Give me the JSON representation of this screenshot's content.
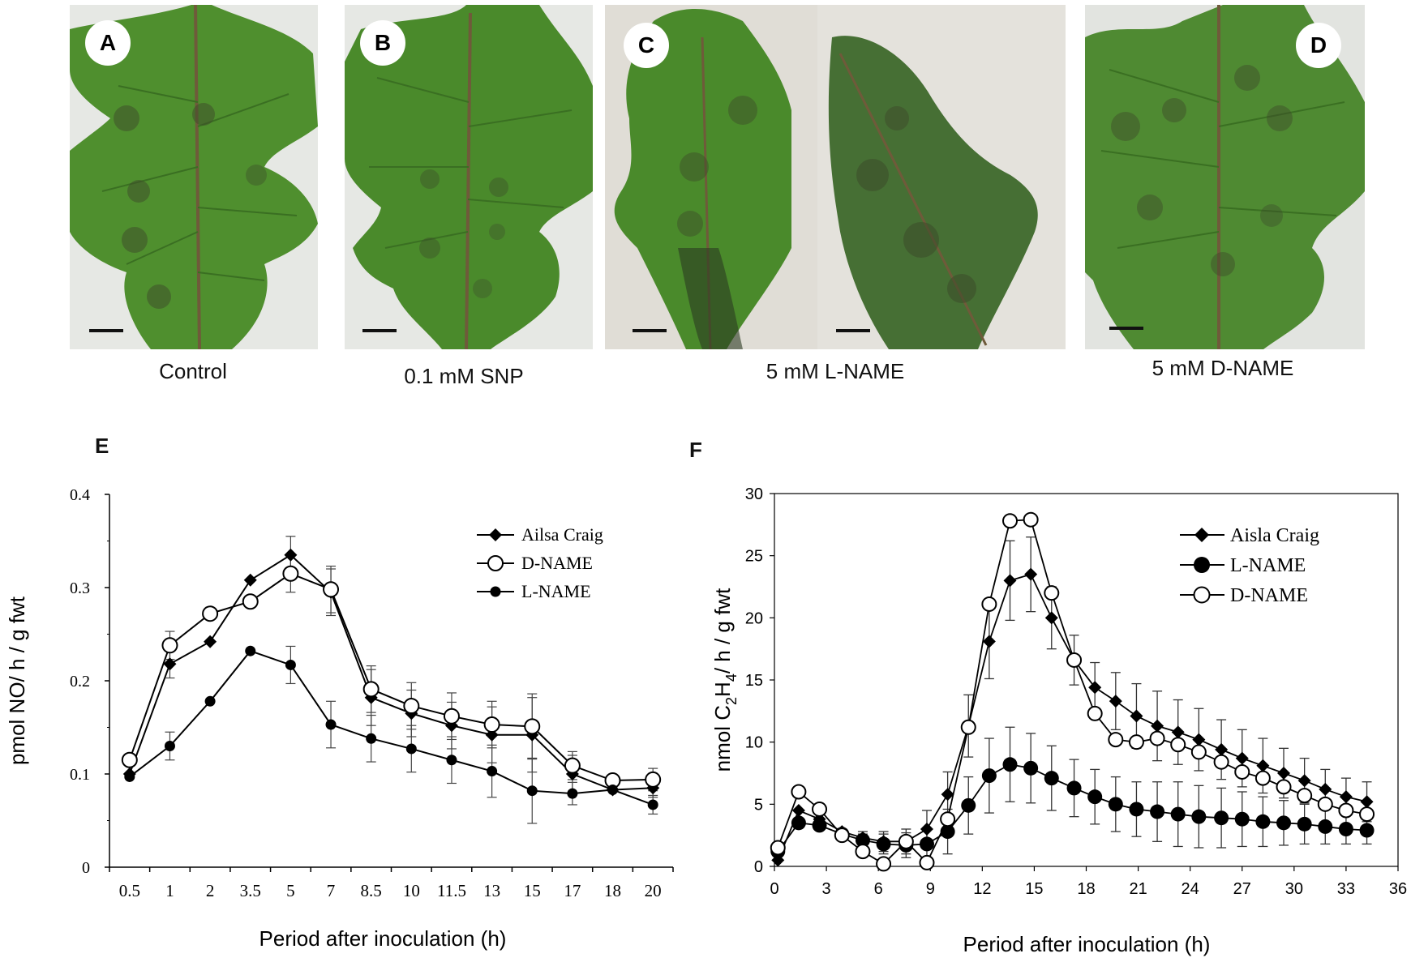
{
  "photos": [
    {
      "id": "A",
      "caption": "Control"
    },
    {
      "id": "B",
      "caption": "0.1 mM SNP"
    },
    {
      "id": "C",
      "caption": "5 mM L-NAME"
    },
    {
      "id": "D",
      "caption": "5 mM D-NAME"
    }
  ],
  "colors": {
    "leaf": "#4f8f2e",
    "leaf_dark": "#3a6f22",
    "vein": "#6f5a3a",
    "lesion": "#3d4a2a",
    "marker": "#000000"
  },
  "charts": {
    "E": {
      "label": "E",
      "chart_data": {
        "type": "line",
        "xlabel": "Period after inoculation (h)",
        "ylabel": "pmol NO/ h / g fwt",
        "ylim": [
          0,
          0.4
        ],
        "yticks": [
          "0",
          "0.1",
          "0.2",
          "0.3",
          "0.4"
        ],
        "categories": [
          "0.5",
          "1",
          "2",
          "3.5",
          "5",
          "7",
          "8.5",
          "10",
          "11.5",
          "13",
          "15",
          "17",
          "18",
          "20"
        ],
        "legend_position": "top-right",
        "series": [
          {
            "name": "Ailsa Craig",
            "marker": "diamond",
            "values": [
              0.1,
              0.218,
              0.242,
              0.308,
              0.335,
              0.295,
              0.182,
              0.165,
              0.152,
              0.142,
              0.142,
              0.1,
              0.083,
              0.085
            ],
            "errors": [
              0,
              0.015,
              0,
              0,
              0.02,
              0.025,
              0.03,
              0.025,
              0.025,
              0.03,
              0.04,
              0.02,
              0,
              0.01
            ]
          },
          {
            "name": "D-NAME",
            "marker": "open-circle",
            "values": [
              0.115,
              0.238,
              0.272,
              0.285,
              0.315,
              0.298,
              0.191,
              0.173,
              0.162,
              0.153,
              0.151,
              0.109,
              0.093,
              0.094
            ],
            "errors": [
              0,
              0.015,
              0,
              0,
              0.02,
              0.025,
              0.025,
              0.025,
              0.025,
              0.025,
              0.035,
              0.015,
              0,
              0.012
            ]
          },
          {
            "name": "L-NAME",
            "marker": "filled-circle",
            "values": [
              0.097,
              0.13,
              0.178,
              0.232,
              0.217,
              0.153,
              0.138,
              0.127,
              0.115,
              0.103,
              0.082,
              0.079,
              0.083,
              0.067
            ],
            "errors": [
              0,
              0.015,
              0,
              0,
              0.02,
              0.025,
              0.025,
              0.025,
              0.025,
              0.028,
              0.035,
              0.012,
              0,
              0.01
            ]
          }
        ]
      }
    },
    "F": {
      "label": "F",
      "chart_data": {
        "type": "line",
        "xlabel": "Period after inoculation (h)",
        "ylabel_parts": [
          "nmol C",
          "2",
          "H",
          "4",
          "/ h / g fwt"
        ],
        "xlim": [
          0,
          36
        ],
        "ylim": [
          0,
          30
        ],
        "xticks": [
          0,
          3,
          6,
          9,
          12,
          15,
          18,
          21,
          24,
          27,
          30,
          33,
          36
        ],
        "yticks": [
          0,
          5,
          10,
          15,
          20,
          25,
          30
        ],
        "legend_position": "top-right",
        "x": [
          0.2,
          1.4,
          2.6,
          3.9,
          5.1,
          6.3,
          7.6,
          8.8,
          10.0,
          11.2,
          12.4,
          13.6,
          14.8,
          16.0,
          17.3,
          18.5,
          19.7,
          20.9,
          22.1,
          23.3,
          24.5,
          25.8,
          27.0,
          28.2,
          29.4,
          30.6,
          31.8,
          33.0,
          34.2
        ],
        "series": [
          {
            "name": "Aisla Craig",
            "marker": "diamond",
            "values": [
              0.5,
              4.5,
              3.8,
              2.8,
              2.3,
              2.0,
              2.0,
              3.0,
              5.8,
              11.3,
              18.1,
              23.0,
              23.5,
              20.0,
              16.6,
              14.4,
              13.3,
              12.1,
              11.3,
              10.8,
              10.2,
              9.4,
              8.7,
              8.1,
              7.5,
              6.9,
              6.2,
              5.6,
              5.2
            ],
            "errors": [
              0,
              0,
              0,
              0,
              0.5,
              0.8,
              1.0,
              1.5,
              1.8,
              2.5,
              3.0,
              3.2,
              3.0,
              2.5,
              2.0,
              2.0,
              2.3,
              2.6,
              2.8,
              2.6,
              2.5,
              2.4,
              2.3,
              2.2,
              2.0,
              1.8,
              1.6,
              1.5,
              1.6
            ]
          },
          {
            "name": "L-NAME",
            "marker": "filled-circle",
            "values": [
              1.2,
              3.5,
              3.3,
              2.6,
              2.1,
              1.8,
              1.7,
              1.8,
              2.8,
              4.9,
              7.3,
              8.2,
              7.9,
              7.1,
              6.3,
              5.6,
              5.0,
              4.6,
              4.4,
              4.2,
              4.0,
              3.9,
              3.8,
              3.6,
              3.5,
              3.4,
              3.2,
              3.0,
              2.9
            ],
            "errors": [
              0,
              0,
              0,
              0,
              0.5,
              0.8,
              1.0,
              1.3,
              1.8,
              2.3,
              3.0,
              3.0,
              2.8,
              2.6,
              2.3,
              2.2,
              2.2,
              2.2,
              2.4,
              2.6,
              2.5,
              2.4,
              2.2,
              2.0,
              1.8,
              1.6,
              1.4,
              1.2,
              1.1
            ]
          },
          {
            "name": "D-NAME",
            "marker": "open-circle",
            "values": [
              1.5,
              6.0,
              4.6,
              2.5,
              1.2,
              0.2,
              2.0,
              0.3,
              3.8,
              11.2,
              21.1,
              27.8,
              27.9,
              22.0,
              16.6,
              12.3,
              10.2,
              10.0,
              10.3,
              9.8,
              9.2,
              8.4,
              7.6,
              7.1,
              6.4,
              5.7,
              5.0,
              4.5,
              4.2
            ],
            "errors": [
              0,
              0,
              0,
              0,
              0,
              0,
              0,
              0,
              0,
              0,
              0,
              0,
              0,
              0,
              0,
              0,
              0,
              0,
              0,
              0,
              0,
              0,
              0,
              0,
              0,
              0,
              0,
              0,
              0
            ]
          }
        ]
      }
    }
  }
}
